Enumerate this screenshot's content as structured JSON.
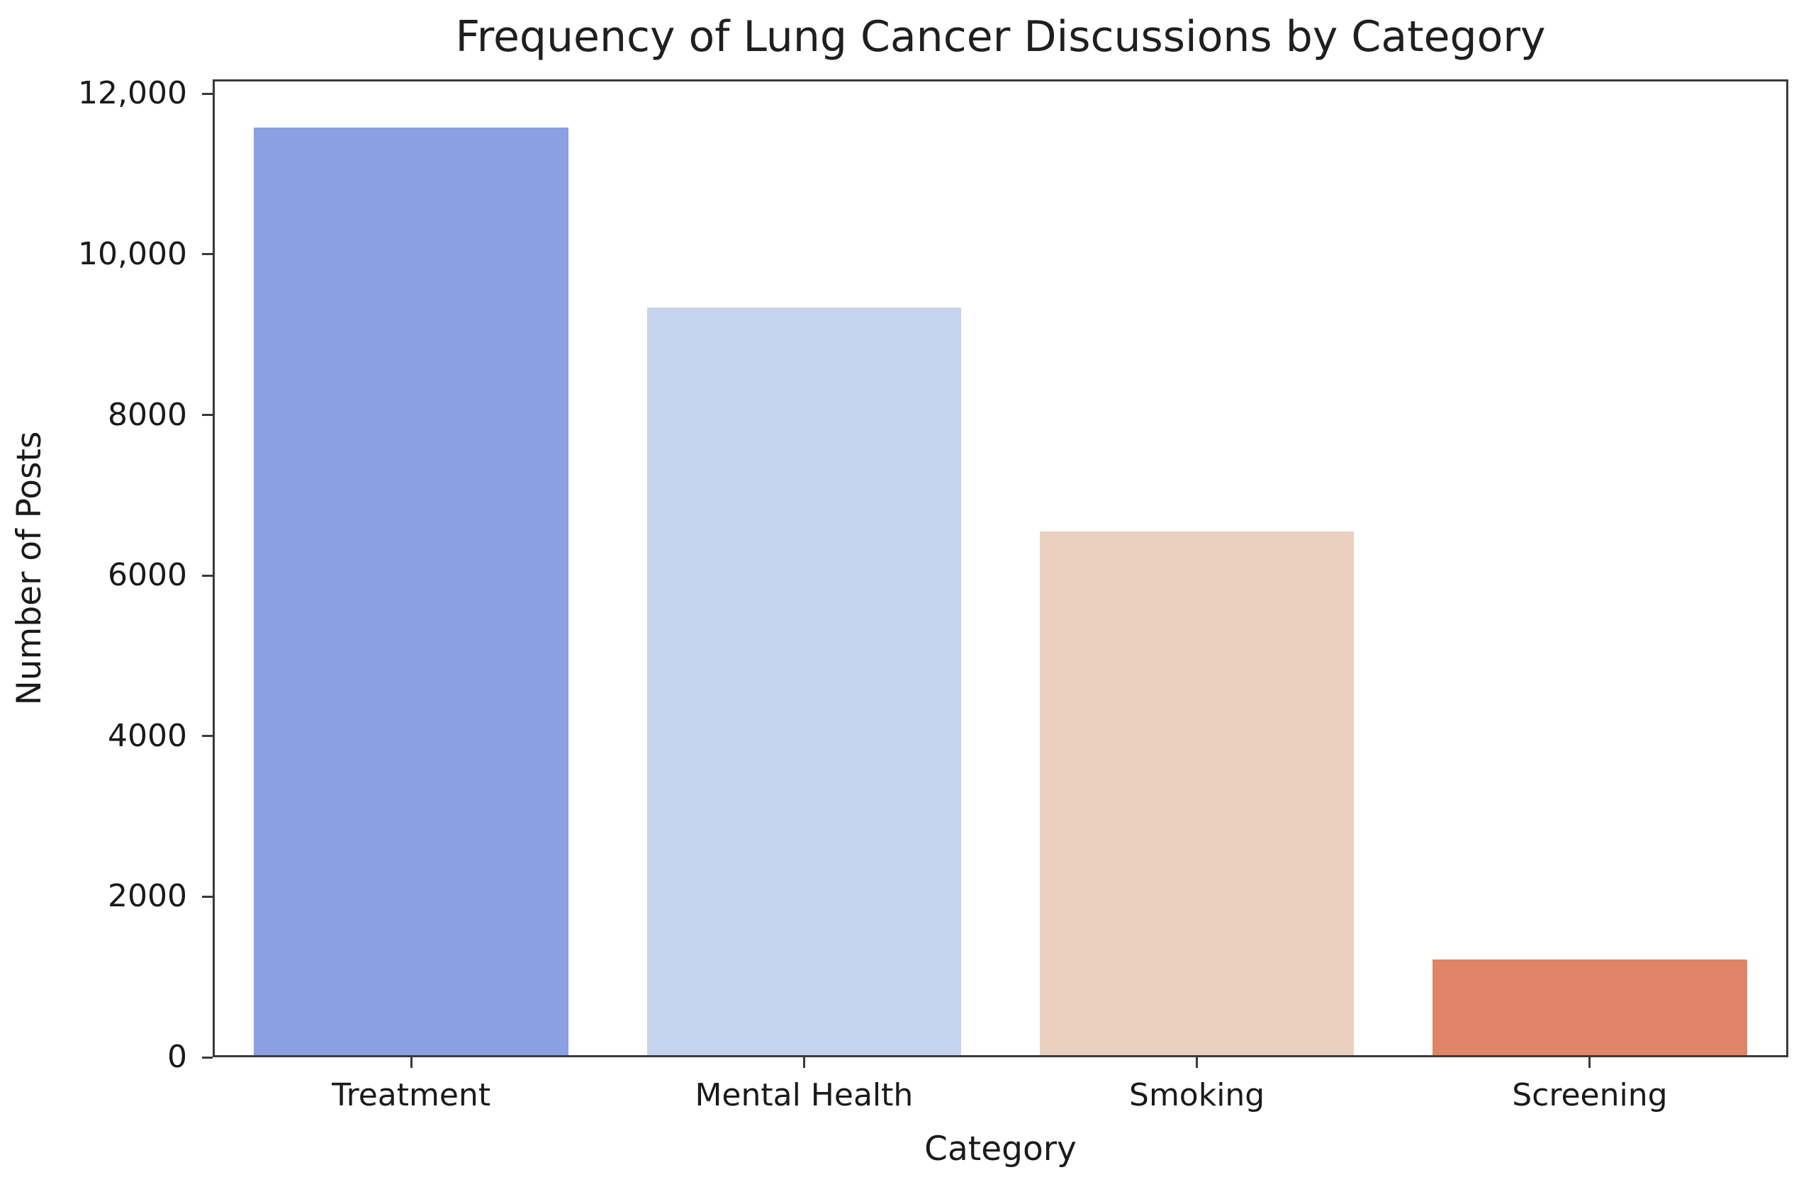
{
  "chart_data": {
    "type": "bar",
    "title": "Frequency of Lung Cancer Discussions by Category",
    "xlabel": "Category",
    "ylabel": "Number of Posts",
    "categories": [
      "Treatment",
      "Mental Health",
      "Smoking",
      "Screening"
    ],
    "values": [
      11600,
      9350,
      6550,
      1200
    ],
    "bar_colors": [
      "#8aa0e3",
      "#c6d3ee",
      "#eacfbf",
      "#e08366"
    ],
    "ylim": [
      0,
      12180
    ],
    "yticks": [
      {
        "value": 12000,
        "label": "12,000"
      },
      {
        "value": 10000,
        "label": "10,000"
      },
      {
        "value": 8000,
        "label": "8000"
      },
      {
        "value": 6000,
        "label": "6000"
      },
      {
        "value": 4000,
        "label": "4000"
      },
      {
        "value": 2000,
        "label": "2000"
      },
      {
        "value": 0,
        "label": "0"
      }
    ],
    "bar_width_fraction": 0.8,
    "grid": false,
    "legend_position": "none",
    "axis_color": "#3a3a3a",
    "text_color": "#1a1a1a",
    "background_color": "#ffffff"
  }
}
